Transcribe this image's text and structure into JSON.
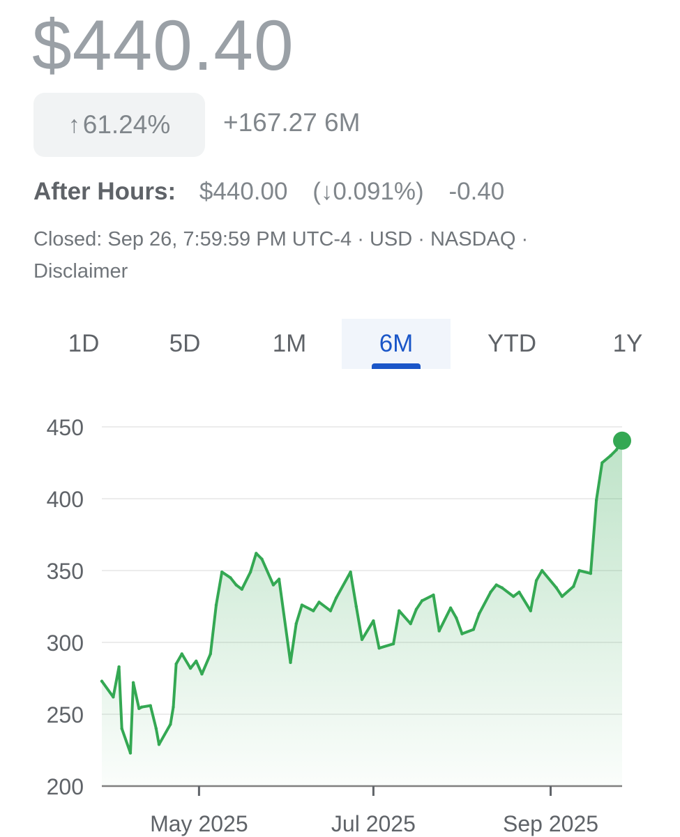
{
  "quote": {
    "price": "$440.40",
    "pct_arrow": "↑",
    "pct_change": "61.24%",
    "abs_change": "+167.27 6M",
    "after_hours_label": "After Hours:",
    "after_hours_price": "$440.00",
    "after_hours_pct": "(↓0.091%)",
    "after_hours_change": "-0.40",
    "meta_line1": "Closed: Sep 26, 7:59:59 PM UTC-4 · USD · NASDAQ ·",
    "meta_line2": "Disclaimer"
  },
  "tabs": [
    {
      "label": "1D",
      "selected": false
    },
    {
      "label": "5D",
      "selected": false
    },
    {
      "label": "1M",
      "selected": false
    },
    {
      "label": "6M",
      "selected": true
    },
    {
      "label": "YTD",
      "selected": false
    },
    {
      "label": "1Y",
      "selected": false
    }
  ],
  "colors": {
    "line": "#34a853",
    "selected_tab": "#1a56c8"
  },
  "chart_data": {
    "type": "area",
    "title": "",
    "xlabel": "",
    "ylabel": "",
    "ylim": [
      200,
      450
    ],
    "yticks": [
      200,
      250,
      300,
      350,
      400,
      450
    ],
    "xticks": [
      {
        "label": "May 2025",
        "date": "2025-05-01"
      },
      {
        "label": "Jul 2025",
        "date": "2025-07-01"
      },
      {
        "label": "Sep 2025",
        "date": "2025-09-01"
      }
    ],
    "grid": true,
    "series": [
      {
        "x": [
          "2025-03-28",
          "2025-04-01",
          "2025-04-03",
          "2025-04-04",
          "2025-04-07",
          "2025-04-08",
          "2025-04-10",
          "2025-04-11",
          "2025-04-14",
          "2025-04-16",
          "2025-04-17",
          "2025-04-21",
          "2025-04-22",
          "2025-04-23",
          "2025-04-25",
          "2025-04-28",
          "2025-04-30",
          "2025-05-02",
          "2025-05-05",
          "2025-05-07",
          "2025-05-09",
          "2025-05-12",
          "2025-05-14",
          "2025-05-16",
          "2025-05-19",
          "2025-05-21",
          "2025-05-23",
          "2025-05-27",
          "2025-05-29",
          "2025-06-02",
          "2025-06-04",
          "2025-06-06",
          "2025-06-10",
          "2025-06-12",
          "2025-06-16",
          "2025-06-18",
          "2025-06-23",
          "2025-06-25",
          "2025-06-27",
          "2025-07-01",
          "2025-07-03",
          "2025-07-08",
          "2025-07-10",
          "2025-07-14",
          "2025-07-16",
          "2025-07-18",
          "2025-07-22",
          "2025-07-24",
          "2025-07-28",
          "2025-07-30",
          "2025-08-01",
          "2025-08-05",
          "2025-08-07",
          "2025-08-11",
          "2025-08-13",
          "2025-08-15",
          "2025-08-19",
          "2025-08-21",
          "2025-08-25",
          "2025-08-27",
          "2025-08-29",
          "2025-09-03",
          "2025-09-05",
          "2025-09-09",
          "2025-09-11",
          "2025-09-15",
          "2025-09-17",
          "2025-09-19",
          "2025-09-22",
          "2025-09-24",
          "2025-09-26"
        ],
        "values": [
          273,
          262,
          283,
          240,
          223,
          272,
          254,
          255,
          256,
          240,
          229,
          243,
          255,
          285,
          292,
          282,
          287,
          278,
          292,
          326,
          349,
          345,
          340,
          337,
          349,
          362,
          358,
          340,
          344,
          286,
          313,
          326,
          322,
          328,
          322,
          331,
          349,
          325,
          302,
          315,
          296,
          299,
          322,
          313,
          323,
          329,
          333,
          308,
          324,
          317,
          306,
          309,
          320,
          335,
          340,
          338,
          332,
          335,
          322,
          343,
          350,
          338,
          332,
          339,
          350,
          348,
          399,
          425,
          430,
          434,
          440.4
        ]
      }
    ]
  }
}
